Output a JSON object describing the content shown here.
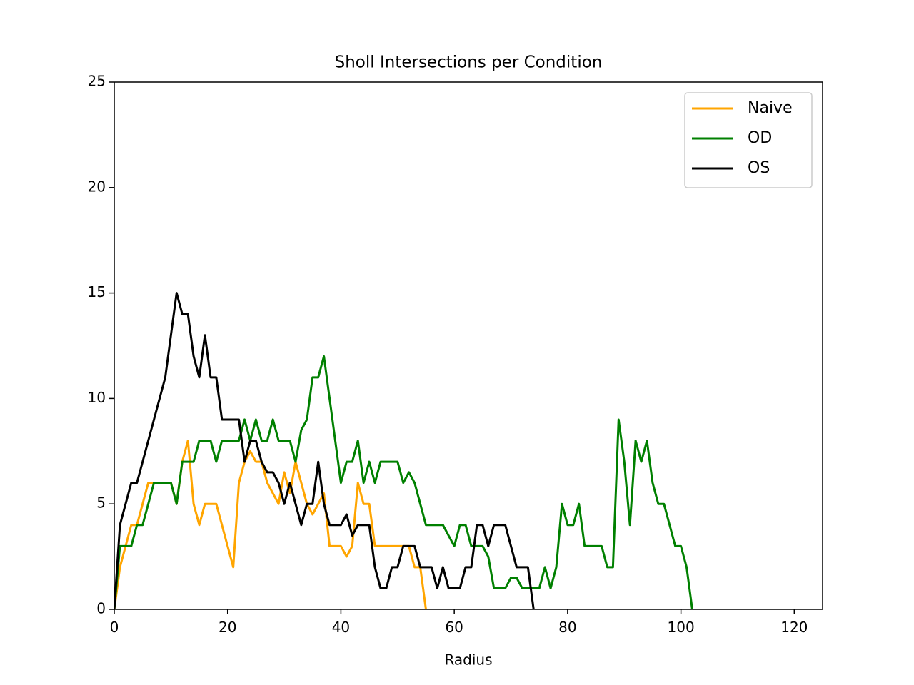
{
  "chart_data": {
    "type": "line",
    "title": "Sholl Intersections per Condition",
    "x_label": "Radius",
    "x": [
      0,
      1,
      2,
      3,
      4,
      5,
      6,
      7,
      8,
      9,
      10,
      11,
      12,
      13,
      14,
      15,
      16,
      17,
      18,
      19,
      20,
      21,
      22,
      23,
      24,
      25,
      26,
      27,
      28,
      29,
      30,
      31,
      32,
      33,
      34,
      35,
      36,
      37,
      38,
      39,
      40,
      41,
      42,
      43,
      44,
      45,
      46,
      47,
      48,
      49,
      50,
      51,
      52,
      53,
      54,
      55,
      56,
      57,
      58,
      59,
      60,
      61,
      62,
      63,
      64,
      65,
      66,
      67,
      68,
      69,
      70,
      71,
      72,
      73,
      74,
      75,
      76,
      77,
      78,
      79,
      80,
      81,
      82,
      83,
      84,
      85,
      86,
      87,
      88,
      89,
      90,
      91,
      92,
      93,
      94,
      95,
      96,
      97,
      98,
      99,
      100,
      101,
      102
    ],
    "series": [
      {
        "name": "Naive",
        "color": "#ffa500",
        "values": [
          0,
          2,
          3,
          4,
          4,
          5,
          6,
          6,
          6,
          6,
          6,
          5,
          7,
          8,
          5,
          4,
          5,
          5,
          5,
          4,
          3,
          2,
          6,
          7,
          7.5,
          7,
          7,
          6,
          5.5,
          5,
          6.5,
          5.5,
          7,
          6,
          5,
          4.5,
          5,
          5.5,
          3,
          3,
          3,
          2.5,
          3,
          6,
          5,
          5,
          3,
          3,
          3,
          3,
          3,
          3,
          3,
          2,
          2,
          0,
          null,
          null,
          null,
          null,
          null,
          null,
          null,
          null,
          null,
          null,
          null,
          null,
          null,
          null,
          null,
          null,
          null,
          null,
          null,
          null,
          null,
          null,
          null,
          null,
          null,
          null,
          null,
          null,
          null,
          null,
          null,
          null,
          null,
          null,
          null,
          null,
          null,
          null,
          null,
          null,
          null,
          null,
          null,
          null,
          null,
          null,
          null
        ]
      },
      {
        "name": "OD",
        "color": "#008000",
        "values": [
          0,
          3,
          3,
          3,
          4,
          4,
          5,
          6,
          6,
          6,
          6,
          5,
          7,
          7,
          7,
          8,
          8,
          8,
          7,
          8,
          8,
          8,
          8,
          9,
          8,
          9,
          8,
          8,
          9,
          8,
          8,
          8,
          7,
          8.5,
          9,
          11,
          11,
          12,
          10,
          8,
          6,
          7,
          7,
          8,
          6,
          7,
          6,
          7,
          7,
          7,
          7,
          6,
          6.5,
          6,
          5,
          4,
          4,
          4,
          4,
          3.5,
          3,
          4,
          4,
          3,
          3,
          3,
          2.5,
          1,
          1,
          1,
          1.5,
          1.5,
          1,
          1,
          1,
          1,
          2,
          1,
          2,
          5,
          4,
          4,
          5,
          3,
          3,
          3,
          3,
          2,
          2,
          9,
          7,
          4,
          8,
          7,
          8,
          6,
          5,
          5,
          4,
          3,
          3,
          2,
          0
        ]
      },
      {
        "name": "OS",
        "color": "#000000",
        "values": [
          0,
          4,
          5,
          6,
          6,
          7,
          8,
          9,
          10,
          11,
          13,
          15,
          14,
          14,
          12,
          11,
          13,
          11,
          11,
          9,
          9,
          9,
          9,
          7,
          8,
          8,
          7,
          6.5,
          6.5,
          6,
          5,
          6,
          5,
          4,
          5,
          5,
          7,
          5,
          4,
          4,
          4,
          4.5,
          3.5,
          4,
          4,
          4,
          2,
          1,
          1,
          2,
          2,
          3,
          3,
          3,
          2,
          2,
          2,
          1,
          2,
          1,
          1,
          1,
          2,
          2,
          4,
          4,
          3,
          4,
          4,
          4,
          3,
          2,
          2,
          2,
          0,
          null,
          null,
          null,
          null,
          null,
          null,
          null,
          null,
          null,
          null,
          null,
          null,
          null,
          null,
          null,
          null,
          null,
          null,
          null,
          null,
          null,
          null,
          null,
          null,
          null,
          null,
          null,
          null
        ]
      }
    ],
    "xlim": [
      0,
      125
    ],
    "xticks": [
      0,
      20,
      40,
      60,
      80,
      100,
      120
    ],
    "ylim": [
      0,
      25
    ],
    "yticks": [
      0,
      5,
      10,
      15,
      20,
      25
    ],
    "legend": "upper right"
  }
}
